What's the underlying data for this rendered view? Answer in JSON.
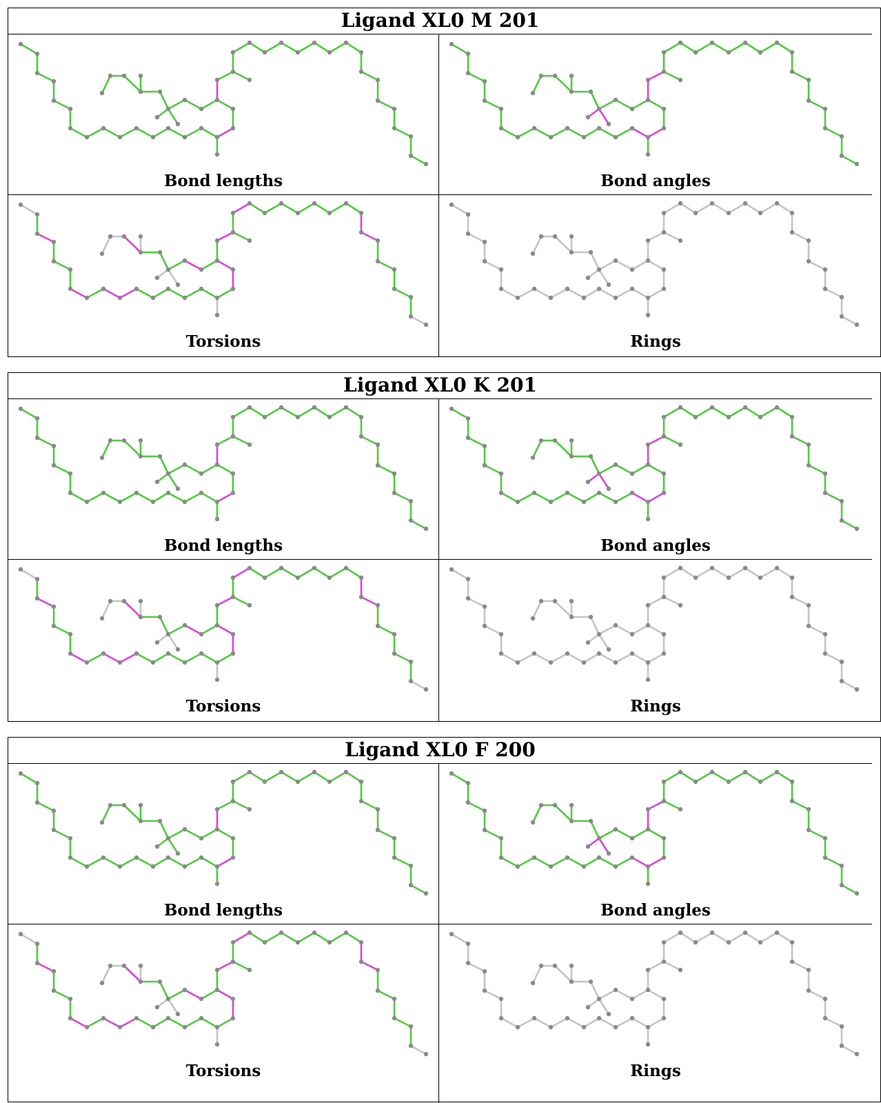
{
  "colors": {
    "ok": "#4ccc3c",
    "outlier": "#e040e0",
    "neutral": "#c4c4c4",
    "atom": "#8a8a8a"
  },
  "panels": [
    {
      "title": "Ligand XL0 M 201",
      "cells": [
        {
          "label": "Bond lengths",
          "mode": "bl"
        },
        {
          "label": "Bond angles",
          "mode": "ba"
        },
        {
          "label": "Torsions",
          "mode": "tor"
        },
        {
          "label": "Rings",
          "mode": "ring"
        }
      ]
    },
    {
      "title": "Ligand XL0 K 201",
      "cells": [
        {
          "label": "Bond lengths",
          "mode": "bl"
        },
        {
          "label": "Bond angles",
          "mode": "ba"
        },
        {
          "label": "Torsions",
          "mode": "tor"
        },
        {
          "label": "Rings",
          "mode": "ring"
        }
      ]
    },
    {
      "title": "Ligand XL0 F 200",
      "cells": [
        {
          "label": "Bond lengths",
          "mode": "bl"
        },
        {
          "label": "Bond angles",
          "mode": "ba"
        },
        {
          "label": "Torsions",
          "mode": "tor"
        },
        {
          "label": "Rings",
          "mode": "ring"
        }
      ]
    }
  ]
}
